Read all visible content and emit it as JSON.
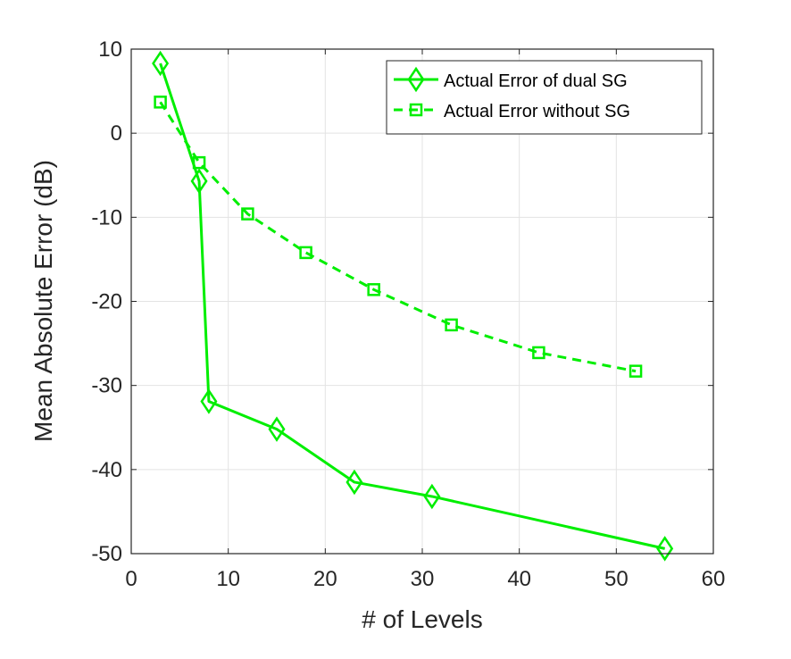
{
  "chart_data": {
    "type": "line",
    "xlabel": "# of Levels",
    "ylabel": "Mean Absolute Error (dB)",
    "xlim": [
      0,
      60
    ],
    "ylim": [
      -50,
      10
    ],
    "xticks": [
      "0",
      "10",
      "20",
      "30",
      "40",
      "50",
      "60"
    ],
    "yticks": [
      "10",
      "0",
      "-10",
      "-20",
      "-30",
      "-40",
      "-50"
    ],
    "grid": true,
    "legend_position": "top-right",
    "series": [
      {
        "name": "Actual Error of dual SG",
        "color": "#00ee00",
        "line_style": "solid",
        "marker": "diamond",
        "x": [
          3,
          7,
          8,
          15,
          23,
          31,
          55
        ],
        "y": [
          8.3,
          -5.7,
          -31.9,
          -35.2,
          -41.5,
          -43.2,
          -49.4
        ]
      },
      {
        "name": "Actual Error without SG",
        "color": "#00ee00",
        "line_style": "dashed",
        "marker": "square",
        "x": [
          3,
          7,
          12,
          18,
          25,
          33,
          42,
          52
        ],
        "y": [
          3.7,
          -3.5,
          -9.6,
          -14.2,
          -18.6,
          -22.8,
          -26.1,
          -28.3
        ]
      }
    ]
  }
}
